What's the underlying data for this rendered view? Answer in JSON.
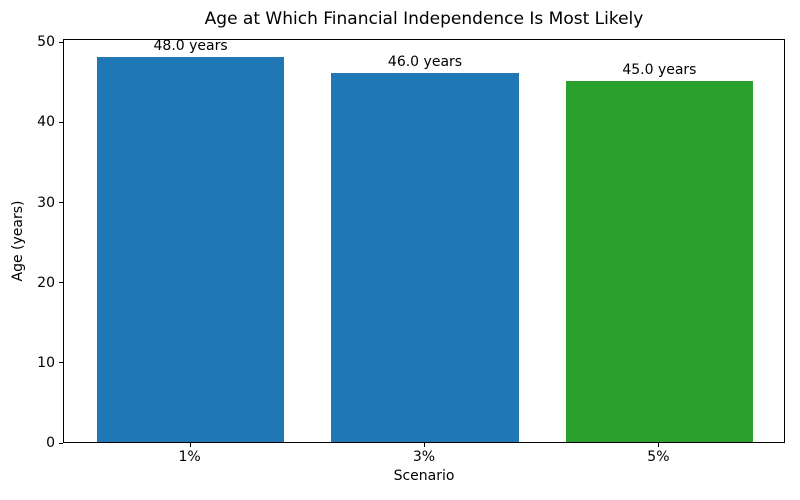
{
  "chart_data": {
    "type": "bar",
    "title": "Age at Which Financial Independence Is Most Likely",
    "xlabel": "Scenario",
    "ylabel": "Age (years)",
    "categories": [
      "1%",
      "3%",
      "5%"
    ],
    "values": [
      48.0,
      46.0,
      45.0
    ],
    "bar_labels": [
      "48.0 years",
      "46.0 years",
      "45.0 years"
    ],
    "bar_colors": [
      "#1f77b4",
      "#1f77b4",
      "#2ca02c"
    ],
    "ylim": [
      0,
      50.4
    ],
    "yticks": [
      0,
      10,
      20,
      30,
      40,
      50
    ],
    "grid": false,
    "legend": "none",
    "background_color": "#ffffff",
    "spine_color": "#000000",
    "text_color": "#000000"
  }
}
